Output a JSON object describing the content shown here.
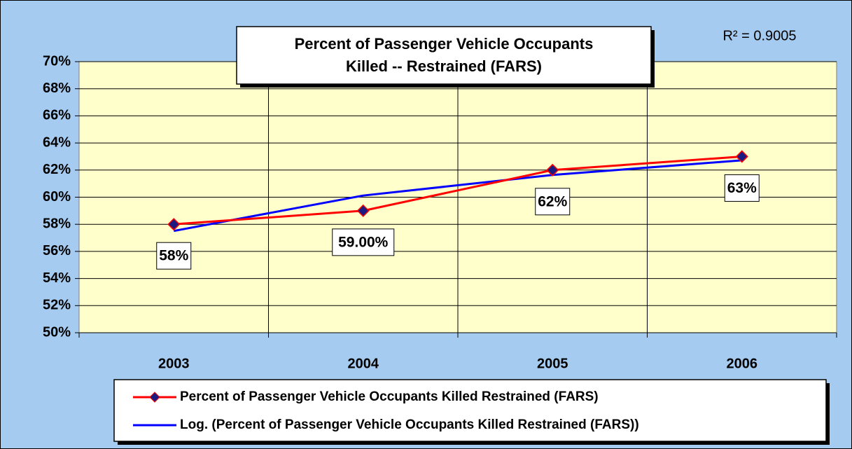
{
  "chart_data": {
    "type": "line",
    "title": [
      "Percent of Passenger Vehicle Occupants",
      "Killed -- Restrained (FARS)"
    ],
    "annotation": "R² = 0.9005",
    "categories": [
      "2003",
      "2004",
      "2005",
      "2006"
    ],
    "series": [
      {
        "name": "Percent of Passenger Vehicle Occupants Killed Restrained (FARS)",
        "color": "#ff0000",
        "marker_color": "#1a1a80",
        "values": [
          58,
          59,
          62,
          63
        ],
        "value_labels": [
          "58%",
          "59.00%",
          "62%",
          "63%"
        ]
      },
      {
        "name": "Log. (Percent of Passenger Vehicle Occupants Killed Restrained (FARS))",
        "color": "#0000ff",
        "values": [
          57.51,
          60.12,
          61.64,
          62.72
        ]
      }
    ],
    "ylim": [
      50,
      70
    ],
    "yticks": [
      {
        "value": 50,
        "label": "50%"
      },
      {
        "value": 52,
        "label": "52%"
      },
      {
        "value": 54,
        "label": "54%"
      },
      {
        "value": 56,
        "label": "56%"
      },
      {
        "value": 58,
        "label": "58%"
      },
      {
        "value": 60,
        "label": "60%"
      },
      {
        "value": 62,
        "label": "62%"
      },
      {
        "value": 64,
        "label": "64%"
      },
      {
        "value": 66,
        "label": "66%"
      },
      {
        "value": 68,
        "label": "68%"
      },
      {
        "value": 70,
        "label": "70%"
      }
    ],
    "grid": true,
    "legend": "bottom",
    "plot_background": "#ffffcc",
    "background": "#a6cbf0"
  }
}
